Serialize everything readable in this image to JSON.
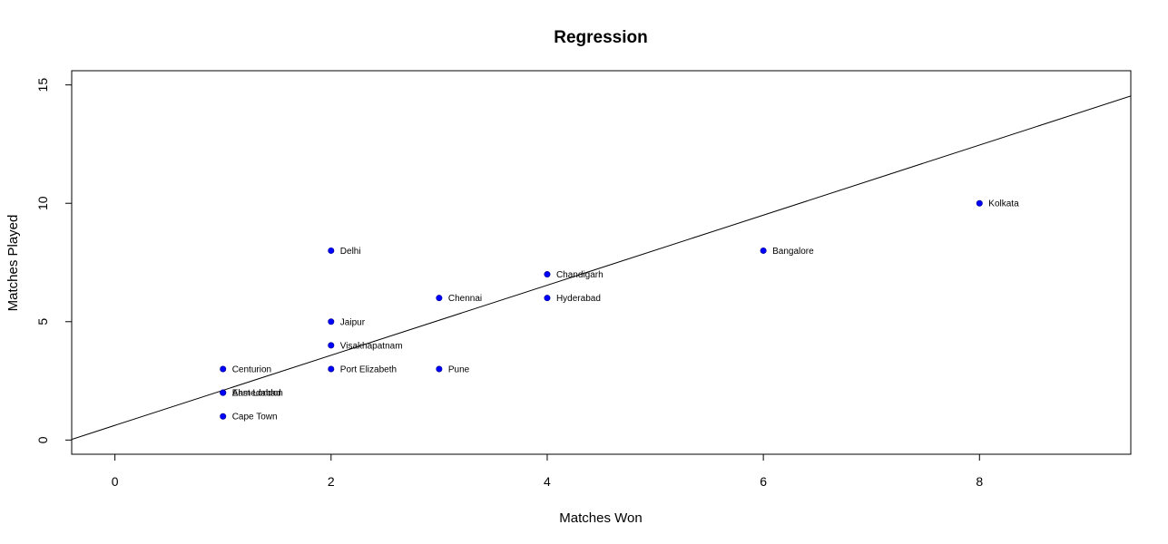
{
  "chart_data": {
    "type": "scatter",
    "title": "Regression",
    "xlabel": "Matches Won",
    "ylabel": "Matches Played",
    "xlim": [
      -0.4,
      9.4
    ],
    "ylim": [
      -0.6,
      15.6
    ],
    "xticks": [
      0,
      2,
      4,
      6,
      8
    ],
    "yticks": [
      0,
      5,
      10,
      15
    ],
    "grid": false,
    "point_color": "#0000FF",
    "line_color": "#000000",
    "regression_line": {
      "intercept": 0.62,
      "slope": 1.48
    },
    "points": [
      {
        "label": "Kolkata",
        "x": 8,
        "y": 10
      },
      {
        "label": "Bangalore",
        "x": 6,
        "y": 8
      },
      {
        "label": "Delhi",
        "x": 2,
        "y": 8
      },
      {
        "label": "Chandigarh",
        "x": 4,
        "y": 7
      },
      {
        "label": "Chennai",
        "x": 3,
        "y": 6
      },
      {
        "label": "Hyderabad",
        "x": 4,
        "y": 6
      },
      {
        "label": "Jaipur",
        "x": 2,
        "y": 5
      },
      {
        "label": "Visakhapatnam",
        "x": 2,
        "y": 4
      },
      {
        "label": "Port Elizabeth",
        "x": 2,
        "y": 3
      },
      {
        "label": "Pune",
        "x": 3,
        "y": 3
      },
      {
        "label": "Centurion",
        "x": 1,
        "y": 3
      },
      {
        "label": "East London",
        "x": 1,
        "y": 2
      },
      {
        "label": "Ahmedabad",
        "x": 1,
        "y": 2
      },
      {
        "label": "Cape Town",
        "x": 1,
        "y": 1
      }
    ]
  }
}
